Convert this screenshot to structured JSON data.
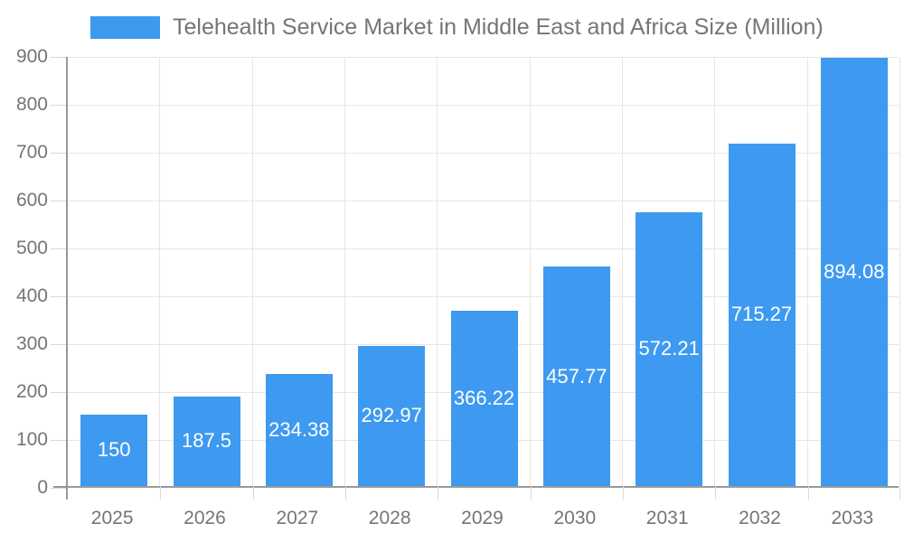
{
  "chart_data": {
    "type": "bar",
    "title": "Telehealth Service Market in Middle East and Africa Size (Million)",
    "categories": [
      "2025",
      "2026",
      "2027",
      "2028",
      "2029",
      "2030",
      "2031",
      "2032",
      "2033"
    ],
    "values": [
      150,
      187.5,
      234.38,
      292.97,
      366.22,
      457.77,
      572.21,
      715.27,
      894.08
    ],
    "value_labels": [
      "150",
      "187.5",
      "234.38",
      "292.97",
      "366.22",
      "457.77",
      "572.21",
      "715.27",
      "894.08"
    ],
    "xlabel": "",
    "ylabel": "",
    "ylim": [
      0,
      900
    ],
    "y_ticks": [
      0,
      100,
      200,
      300,
      400,
      500,
      600,
      700,
      800,
      900
    ],
    "grid": "on",
    "legend_position": "top",
    "bar_label_position": "inside-center"
  },
  "colors": {
    "bar": "#3D9AF0",
    "bar_label": "#ffffff",
    "title_text": "#757575",
    "axis_text": "#757575",
    "axis_line": "#999999",
    "gridline": "#e6e6e6",
    "tick": "#d9d9d9",
    "background": "#ffffff"
  }
}
